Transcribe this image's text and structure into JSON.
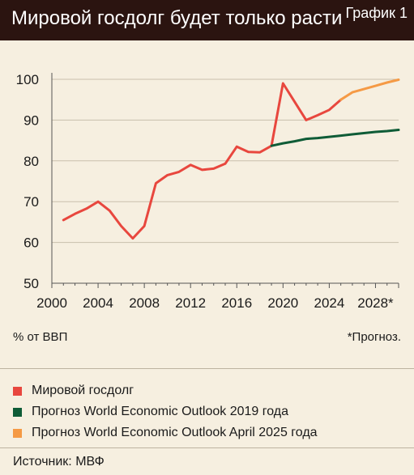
{
  "header": {
    "title": "Мировой госдолг будет только расти",
    "badge": "График 1"
  },
  "unit_label": "% от ВВП",
  "note": "*Прогноз.",
  "source": "Источник: МВФ",
  "legend": [
    {
      "label": "Мировой госдолг",
      "color": "#e8473e"
    },
    {
      "label": "Прогноз World Economic Outlook 2019 года",
      "color": "#0f5c37"
    },
    {
      "label": "Прогноз World Economic Outlook April 2025 года",
      "color": "#f59a45"
    }
  ],
  "chart_data": {
    "type": "line",
    "x_ticks": [
      "2000",
      "2004",
      "2008",
      "2012",
      "2016",
      "2020",
      "2024",
      "2028*"
    ],
    "y_ticks": [
      "50",
      "60",
      "70",
      "80",
      "90",
      "100"
    ],
    "xlim": [
      2000,
      2030
    ],
    "ylim": [
      50,
      100
    ],
    "grid": "horizontal",
    "series": [
      {
        "name": "Мировой госдолг",
        "color": "#e8473e",
        "x": [
          2001,
          2002,
          2003,
          2004,
          2005,
          2006,
          2007,
          2008,
          2009,
          2010,
          2011,
          2012,
          2013,
          2014,
          2015,
          2016,
          2017,
          2018,
          2019,
          2020,
          2021,
          2022,
          2023,
          2024,
          2025
        ],
        "y": [
          65.5,
          67,
          68.3,
          70,
          67.8,
          64,
          61,
          64,
          74.5,
          76.5,
          77.3,
          79,
          77.8,
          78.1,
          79.3,
          83.5,
          82.2,
          82.1,
          83.7,
          99,
          94.5,
          90,
          91.2,
          92.5,
          95
        ]
      },
      {
        "name": "Прогноз World Economic Outlook 2019 года",
        "color": "#0f5c37",
        "x": [
          2019,
          2020,
          2021,
          2022,
          2023,
          2024,
          2025,
          2026,
          2027,
          2028,
          2029,
          2030
        ],
        "y": [
          83.7,
          84.3,
          84.8,
          85.4,
          85.6,
          85.9,
          86.2,
          86.5,
          86.8,
          87.1,
          87.3,
          87.6
        ]
      },
      {
        "name": "Прогноз World Economic Outlook April 2025 года",
        "color": "#f59a45",
        "x": [
          2025,
          2026,
          2027,
          2028,
          2029,
          2030
        ],
        "y": [
          95,
          96.8,
          97.6,
          98.4,
          99.2,
          99.9
        ]
      }
    ]
  }
}
